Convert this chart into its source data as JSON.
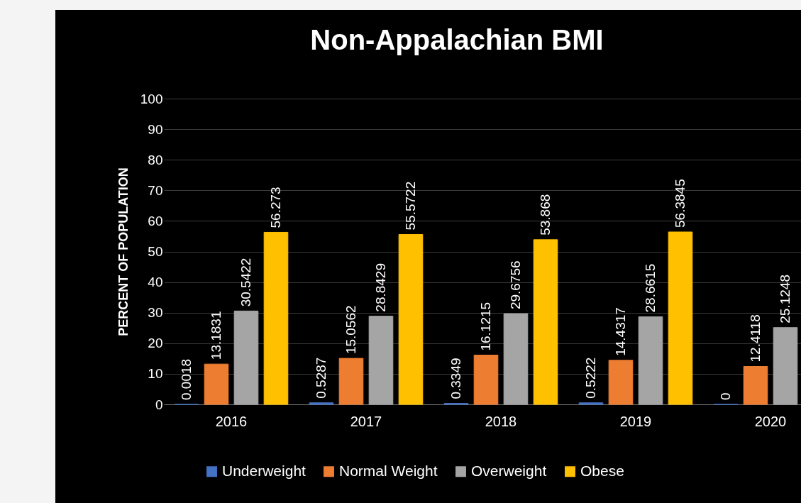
{
  "chart_data": {
    "type": "bar",
    "title": "Non-Appalachian BMI",
    "ylabel": "PERCENT OF POPULATION",
    "categories": [
      "2016",
      "2017",
      "2018",
      "2019",
      "2020"
    ],
    "series": [
      {
        "name": "Underweight",
        "color": "#4472c4",
        "values": [
          0.0018,
          0.5287,
          0.3349,
          0.5222,
          0
        ]
      },
      {
        "name": "Normal Weight",
        "color": "#ed7d31",
        "values": [
          13.1831,
          15.0562,
          16.1215,
          14.4317,
          12.4118
        ]
      },
      {
        "name": "Overweight",
        "color": "#a5a5a5",
        "values": [
          30.5422,
          28.8429,
          29.6756,
          28.6615,
          25.1248
        ]
      },
      {
        "name": "Obese",
        "color": "#ffc000",
        "values": [
          56.273,
          55.5722,
          53.868,
          56.3845,
          null
        ]
      }
    ],
    "ylim": [
      0,
      100
    ],
    "yticks": [
      0,
      10,
      20,
      30,
      40,
      50,
      60,
      70,
      80,
      90,
      100
    ],
    "grid": "y",
    "legend": "bottom",
    "data_labels": true
  }
}
